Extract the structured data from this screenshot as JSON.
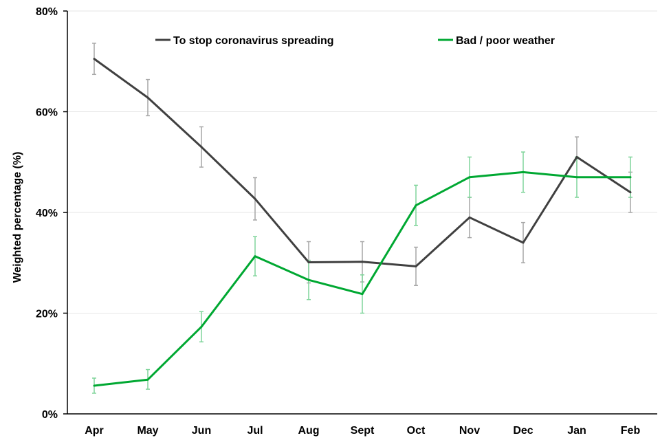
{
  "chart_data": {
    "type": "line",
    "ylabel": "Weighted percentage (%)",
    "xlabel": "",
    "ylim": [
      0,
      80
    ],
    "yticks": [
      0,
      20,
      40,
      60,
      80
    ],
    "ytick_labels": [
      "0%",
      "20%",
      "40%",
      "60%",
      "80%"
    ],
    "grid": "horizontal",
    "legend_position": "top",
    "categories": [
      "Apr",
      "May",
      "Jun",
      "Jul",
      "Aug",
      "Sept",
      "Oct",
      "Nov",
      "Dec",
      "Jan",
      "Feb"
    ],
    "series": [
      {
        "name": "To stop coronavirus spreading",
        "color": "#404040",
        "error_color": "#a6a6a6",
        "values": [
          70.5,
          62.8,
          53.0,
          42.7,
          30.1,
          30.2,
          29.3,
          39.0,
          34.0,
          51.0,
          44.0
        ],
        "lower": [
          67.4,
          59.2,
          49.0,
          38.5,
          26.0,
          26.2,
          25.5,
          35.0,
          30.0,
          47.0,
          40.0
        ],
        "upper": [
          73.6,
          66.4,
          57.0,
          46.9,
          34.2,
          34.2,
          33.1,
          43.0,
          38.0,
          55.0,
          48.0
        ]
      },
      {
        "name": "Bad / poor weather",
        "color": "#00a832",
        "error_color": "#7fd49a",
        "values": [
          5.6,
          6.8,
          17.3,
          31.3,
          26.6,
          23.8,
          41.4,
          47.0,
          48.0,
          47.0,
          47.0
        ],
        "lower": [
          4.1,
          4.9,
          14.3,
          27.4,
          22.7,
          20.0,
          37.4,
          43.0,
          44.0,
          43.0,
          43.0
        ],
        "upper": [
          7.1,
          8.8,
          20.3,
          35.2,
          30.5,
          27.6,
          45.4,
          51.0,
          52.0,
          51.0,
          51.0
        ]
      }
    ]
  }
}
